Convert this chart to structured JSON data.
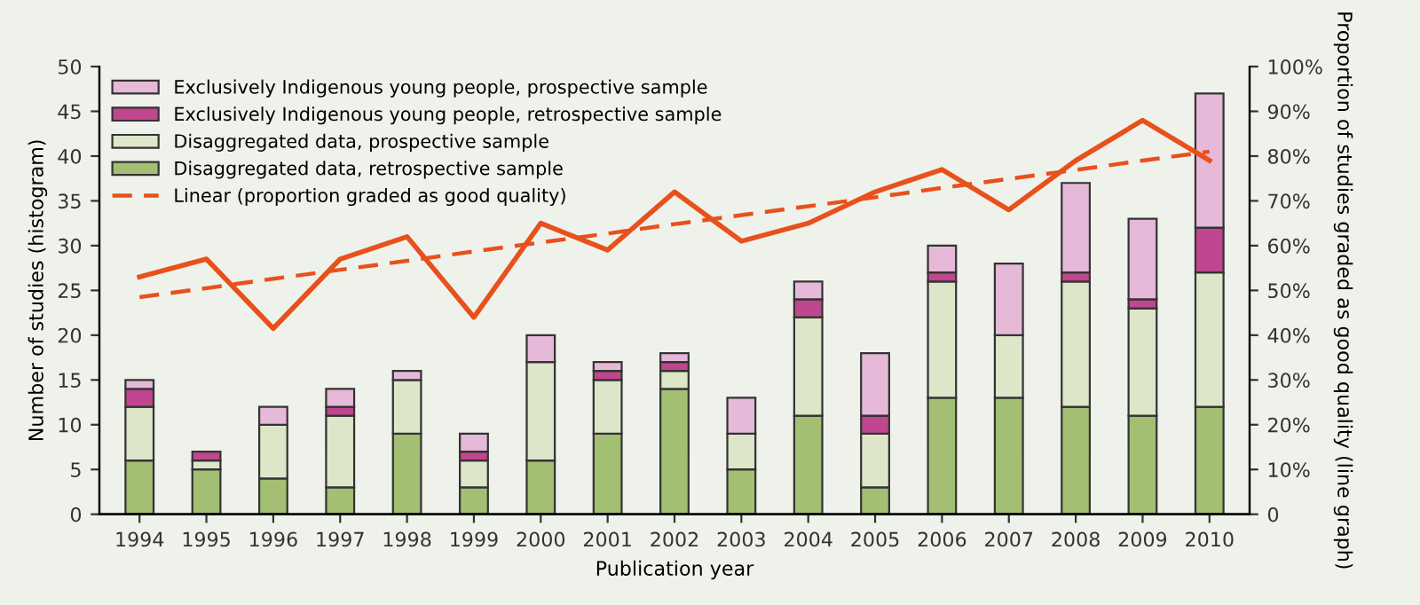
{
  "chart_data": {
    "type": "bar",
    "stacked": true,
    "xlabel": "Publication year",
    "ylabel": "Number of studies (histogram)",
    "y2label": "Proportion of studies graded as good quality (line graph)",
    "categories": [
      "1994",
      "1995",
      "1996",
      "1997",
      "1998",
      "1999",
      "2000",
      "2001",
      "2002",
      "2003",
      "2004",
      "2005",
      "2006",
      "2007",
      "2008",
      "2009",
      "2010"
    ],
    "series": [
      {
        "name": "Disaggregated data, retrospective sample",
        "color": "#a3bf73",
        "values": [
          6,
          5,
          4,
          3,
          9,
          3,
          6,
          9,
          14,
          5,
          11,
          3,
          13,
          13,
          12,
          11,
          12
        ]
      },
      {
        "name": "Disaggregated data, prospective sample",
        "color": "#dde6c8",
        "values": [
          6,
          1,
          6,
          8,
          6,
          3,
          11,
          6,
          2,
          4,
          11,
          6,
          13,
          7,
          14,
          12,
          15
        ]
      },
      {
        "name": "Exclusively Indigenous young people, retrospective sample",
        "color": "#c0468f",
        "values": [
          2,
          1,
          0,
          1,
          0,
          1,
          0,
          1,
          1,
          0,
          2,
          2,
          1,
          0,
          1,
          1,
          5
        ]
      },
      {
        "name": "Exclusively Indigenous young people, prospective sample",
        "color": "#e6b9d8",
        "values": [
          1,
          0,
          2,
          2,
          1,
          2,
          3,
          1,
          1,
          4,
          2,
          7,
          3,
          8,
          10,
          9,
          15
        ]
      },
      {
        "type": "line",
        "axis": "y2",
        "color": "#e8501c",
        "line_style": "solid",
        "values": [
          53,
          57,
          41.5,
          57,
          62,
          44,
          65,
          59,
          72,
          61,
          65,
          72,
          77,
          68,
          79,
          88,
          79
        ]
      },
      {
        "type": "line",
        "axis": "y2",
        "name": "Linear (proportion graded as good quality)",
        "color": "#e8501c",
        "line_style": "dashed",
        "values": [
          48.5,
          50.5,
          52.6,
          54.6,
          56.6,
          58.7,
          60.7,
          62.7,
          64.8,
          66.8,
          68.8,
          70.8,
          72.9,
          74.9,
          76.9,
          79.0,
          81.0
        ]
      }
    ],
    "ylim": [
      0,
      50
    ],
    "yticks": [
      0,
      5,
      10,
      15,
      20,
      25,
      30,
      35,
      40,
      45,
      50
    ],
    "y2lim": [
      0,
      100
    ],
    "y2ticks": [
      {
        "value": 0,
        "label": "0"
      },
      {
        "value": 10,
        "label": "10%"
      },
      {
        "value": 20,
        "label": "20%"
      },
      {
        "value": 30,
        "label": "30%"
      },
      {
        "value": 40,
        "label": "40%"
      },
      {
        "value": 50,
        "label": "50%"
      },
      {
        "value": 60,
        "label": "60%"
      },
      {
        "value": 70,
        "label": "70%"
      },
      {
        "value": 80,
        "label": "80%"
      },
      {
        "value": 90,
        "label": "90%"
      },
      {
        "value": 100,
        "label": "100%"
      }
    ],
    "grid": false,
    "legend": "top left"
  }
}
